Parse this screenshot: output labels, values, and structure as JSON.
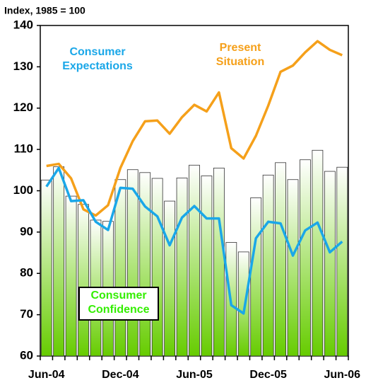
{
  "chart_data": {
    "type": "bar-line",
    "y_label": "Index, 1985 = 100",
    "categories": [
      "Jun-04",
      null,
      null,
      null,
      null,
      null,
      "Dec-04",
      null,
      null,
      null,
      null,
      null,
      "Jun-05",
      null,
      null,
      null,
      null,
      null,
      "Dec-05",
      null,
      null,
      null,
      null,
      null,
      "Jun-06"
    ],
    "series": [
      {
        "name": "Consumer Confidence",
        "kind": "bar",
        "color": "#66cc00",
        "label_color": "#33ee00",
        "values": [
          102.6,
          105.8,
          98.7,
          96.7,
          92.9,
          92.6,
          102.7,
          105.1,
          104.4,
          103.0,
          97.5,
          103.1,
          106.2,
          103.6,
          105.5,
          87.5,
          85.2,
          98.3,
          103.8,
          106.8,
          102.7,
          107.5,
          109.8,
          104.7,
          105.7
        ]
      },
      {
        "name": "Present Situation",
        "kind": "line",
        "color": "#f5a01a",
        "values": [
          106.0,
          106.5,
          103.0,
          95.5,
          94.0,
          96.5,
          105.5,
          112.0,
          116.8,
          117.0,
          113.8,
          117.8,
          120.8,
          119.2,
          123.8,
          110.3,
          107.8,
          113.3,
          120.6,
          128.8,
          130.3,
          133.5,
          136.2,
          134.1,
          132.8
        ]
      },
      {
        "name": "Consumer Expectations",
        "kind": "line",
        "color": "#1aa7e8",
        "values": [
          101.0,
          105.5,
          97.5,
          97.7,
          92.5,
          90.5,
          100.7,
          100.5,
          96.2,
          93.8,
          86.8,
          93.5,
          96.3,
          93.3,
          93.3,
          72.3,
          70.3,
          88.5,
          92.5,
          92.1,
          84.3,
          90.4,
          92.3,
          85.1,
          87.7
        ]
      }
    ],
    "ylim": [
      60,
      140
    ],
    "yticks": [
      60,
      70,
      80,
      90,
      100,
      110,
      120,
      130,
      140
    ],
    "grid": false
  }
}
